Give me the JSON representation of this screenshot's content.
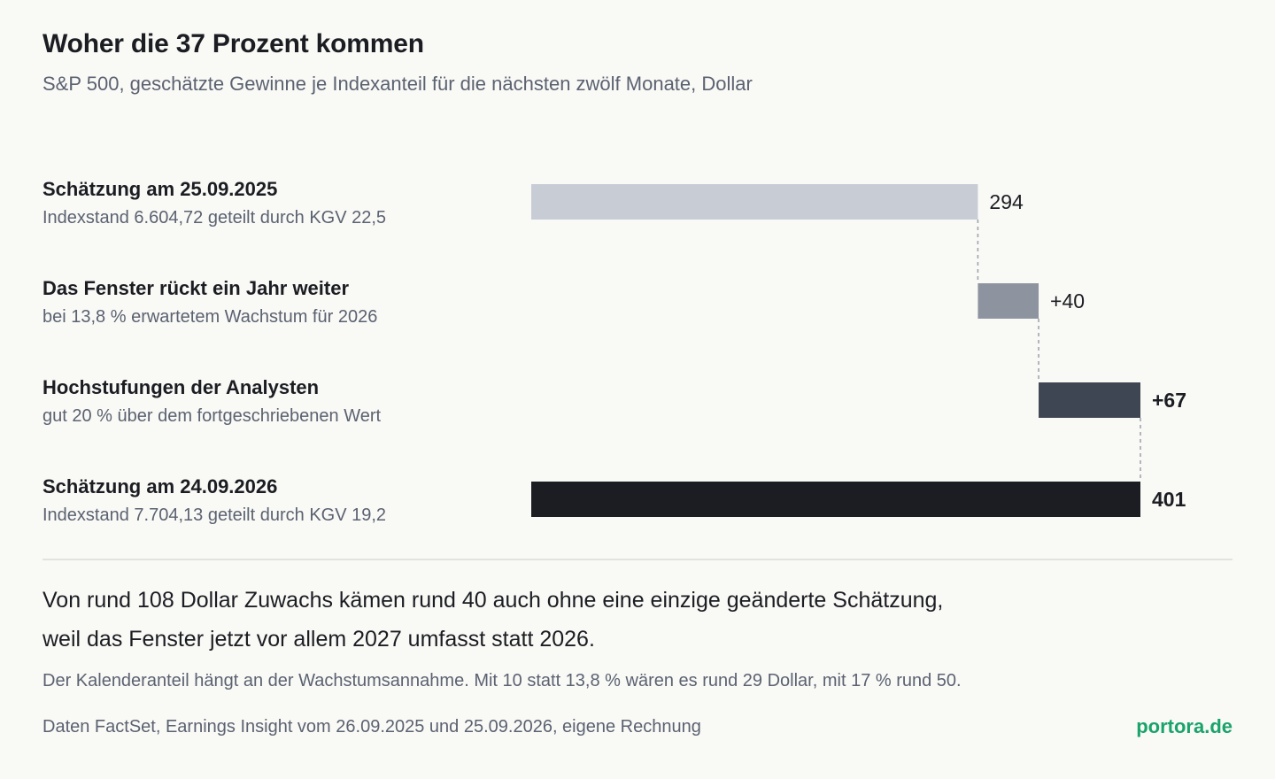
{
  "title": "Woher die 37 Prozent kommen",
  "subtitle": "S&P 500, geschätzte Gewinne je Indexanteil für die nächsten zwölf Monate, Dollar",
  "rows": [
    {
      "label": "Schätzung am 25.09.2025",
      "sublabel": "Indexstand 6.604,72 geteilt durch KGV 22,5"
    },
    {
      "label": "Das Fenster rückt ein Jahr weiter",
      "sublabel": "bei 13,8 % erwartetem Wachstum für 2026"
    },
    {
      "label": "Hochstufungen der Analysten",
      "sublabel": "gut 20 % über dem fortgeschriebenen Wert"
    },
    {
      "label": "Schätzung am 24.09.2026",
      "sublabel": "Indexstand 7.704,13 geteilt durch KGV 19,2"
    }
  ],
  "note_main_1": "Von rund 108 Dollar Zuwachs kämen rund 40 auch ohne eine einzige geänderte Schätzung,",
  "note_main_2": "weil das Fenster jetzt vor allem 2027 umfasst statt 2026.",
  "note_small": "Der Kalenderanteil hängt an der Wachstumsannahme. Mit 10 statt 13,8 % wären es rund 29 Dollar, mit 17 % rund 50.",
  "source": "Daten FactSet, Earnings Insight vom 26.09.2025 und 25.09.2026, eigene Rechnung",
  "brand": "portora.de",
  "chart_data": {
    "type": "bar",
    "categories": [
      "Schätzung am 25.09.2025",
      "Das Fenster rückt ein Jahr weiter",
      "Hochstufungen der Analysten",
      "Schätzung am 24.09.2026"
    ],
    "values": [
      294,
      40,
      67,
      401
    ],
    "kinds": [
      "total",
      "delta",
      "delta",
      "total"
    ],
    "value_labels": [
      "294",
      "+40",
      "+67",
      "401"
    ],
    "label_bold": [
      false,
      false,
      true,
      true
    ],
    "colors": [
      "#c8ccd4",
      "#8e949f",
      "#3f4653",
      "#1b1d22"
    ],
    "connector_color": "#9aa0aa",
    "xlim": [
      0,
      401
    ]
  }
}
